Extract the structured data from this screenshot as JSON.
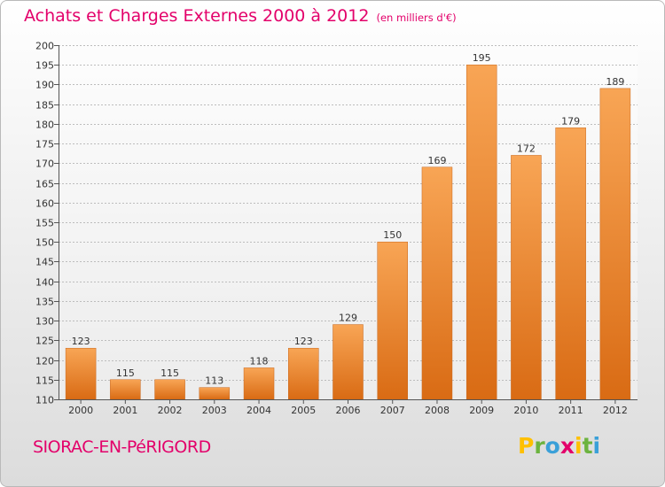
{
  "title": "Achats et Charges Externes 2000 à 2012",
  "title_unit": "(en milliers d'€)",
  "town": "SIORAC-EN-PéRIGORD",
  "logo": {
    "letters": [
      {
        "char": "P",
        "color": "#ffc000"
      },
      {
        "char": "r",
        "color": "#6cb33f"
      },
      {
        "char": "o",
        "color": "#3aa0d8"
      },
      {
        "char": "x",
        "color": "#e3006a"
      },
      {
        "char": "i",
        "color": "#ffc000"
      },
      {
        "char": "t",
        "color": "#6cb33f"
      },
      {
        "char": "i",
        "color": "#3aa0d8"
      }
    ]
  },
  "colors": {
    "bar_top": "#f8a555",
    "bar_bottom": "#d96b14",
    "accent": "#e3006a"
  },
  "chart_data": {
    "type": "bar",
    "title": "Achats et Charges Externes 2000 à 2012",
    "xlabel": "",
    "ylabel": "(en milliers d'€)",
    "categories": [
      "2000",
      "2001",
      "2002",
      "2003",
      "2004",
      "2005",
      "2006",
      "2007",
      "2008",
      "2009",
      "2010",
      "2011",
      "2012"
    ],
    "values": [
      123,
      115,
      115,
      113,
      118,
      123,
      129,
      150,
      169,
      195,
      172,
      179,
      189
    ],
    "ylim": [
      110,
      200
    ],
    "ytick_step": 5,
    "grid": true
  }
}
